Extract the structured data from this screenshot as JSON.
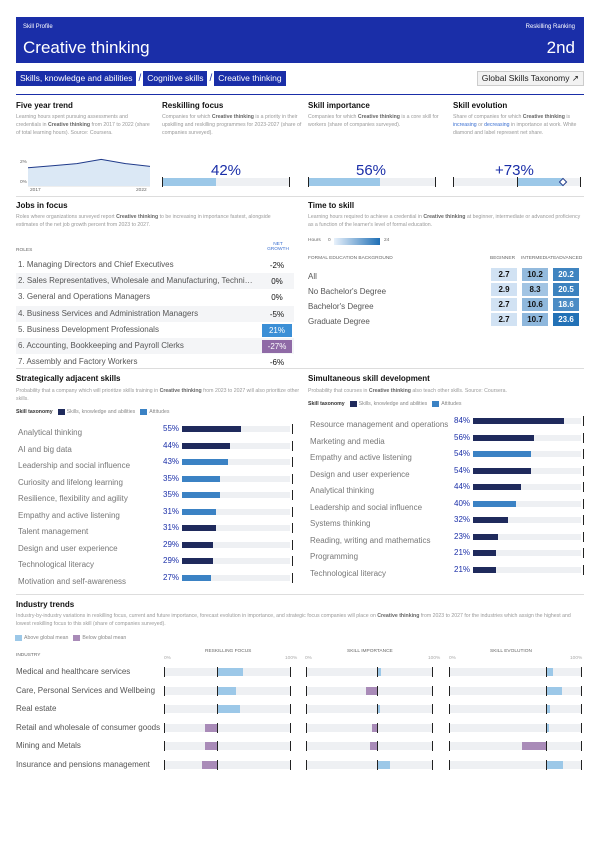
{
  "header": {
    "skill_profile": "Skill Profile",
    "reskilling_ranking": "Reskilling Ranking",
    "title": "Creative thinking",
    "rank": "2nd"
  },
  "breadcrumb": [
    "Skills, knowledge and abilities",
    "Cognitive skills",
    "Creative thinking"
  ],
  "breadcrumb_sep": "/",
  "taxonomy_link": "Global Skills Taxonomy ↗",
  "five_year": {
    "title": "Five year trend",
    "desc_pre": "Learning hours spent pursuing assessments and credentials in ",
    "desc_bold": "Creative thinking",
    "desc_post": " from 2017 to 2022 (share of total learning hours). Source: Coursera.",
    "y_top": "2%",
    "y_bottom": "0%",
    "x_start": "2017",
    "x_end": "2022",
    "chart_data": {
      "type": "area",
      "x": [
        2017,
        2018,
        2019,
        2020,
        2021,
        2022
      ],
      "values": [
        1.3,
        1.45,
        1.6,
        1.9,
        1.6,
        1.4
      ],
      "ylim": [
        0,
        2
      ],
      "color": "#8fbde6"
    }
  },
  "reskilling_focus": {
    "title": "Reskilling focus",
    "desc_pre": "Companies for which ",
    "desc_bold": "Creative thinking",
    "desc_post": " is a priority in their upskilling and reskilling programmes for 2023-2027 (share of companies surveyed).",
    "value": "42%",
    "fill": 0.42
  },
  "skill_importance": {
    "title": "Skill importance",
    "desc_pre": "Companies for which ",
    "desc_bold": "Creative thinking",
    "desc_post": " is a core skill for workers (share of companies surveyed).",
    "value": "56%",
    "fill": 0.56
  },
  "skill_evolution": {
    "title": "Skill evolution",
    "desc_pre": "Share of companies for which ",
    "desc_bold": "Creative thinking",
    "desc_mid": " is ",
    "desc_blue1": "increasing",
    "desc_or": " or ",
    "desc_blue2": "decreasing",
    "desc_post": " in importance at work. White diamond and label represent net share.",
    "value": "+73%",
    "net": 0.73
  },
  "jobs_in_focus": {
    "title": "Jobs in focus",
    "desc_pre": "Roles where organizations surveyed report ",
    "desc_bold": "Creative thinking",
    "desc_post": " to be increasing in importance fastest, alongside estimates of the net job growth percent from 2023 to 2027.",
    "col_roles": "ROLES",
    "col_net": "NET GROWTH",
    "rows": [
      {
        "name": "1.  Managing Directors and Chief Executives",
        "value": "-2%"
      },
      {
        "name": "2.  Sales Representatives, Wholesale and Manufacturing, Technical…",
        "value": "0%"
      },
      {
        "name": "3.  General and Operations Managers",
        "value": "0%"
      },
      {
        "name": "4.  Business Services and Administration Managers",
        "value": "-5%"
      },
      {
        "name": "5.  Business Development Professionals",
        "value": "21%"
      },
      {
        "name": "6.  Accounting, Bookkeeping and Payroll Clerks",
        "value": "-27%"
      },
      {
        "name": "7.  Assembly and Factory Workers",
        "value": "-6%"
      }
    ]
  },
  "time_to_skill": {
    "title": "Time to skill",
    "desc_pre": "Learning hours required to achieve a credential in ",
    "desc_bold": "Creative thinking",
    "desc_post": " at beginner, intermediate or advanced proficiency as a function of the learner's level of formal education.",
    "hours_label": "Hours",
    "scale_min": "0",
    "scale_max": "24",
    "col_bg": "FORMAL EDUCATION BACKGROUND",
    "col_beg": "BEGINNER",
    "col_int": "INTERMEDIATE",
    "col_adv": "ADVANCED",
    "rows": [
      {
        "name": "All",
        "beg": "2.7",
        "int": "10.2",
        "adv": "20.2"
      },
      {
        "name": "No Bachelor's Degree",
        "beg": "2.9",
        "int": "8.3",
        "adv": "20.5"
      },
      {
        "name": "Bachelor's Degree",
        "beg": "2.7",
        "int": "10.6",
        "adv": "18.6"
      },
      {
        "name": "Graduate Degree",
        "beg": "2.7",
        "int": "10.7",
        "adv": "23.6"
      }
    ]
  },
  "adjacent": {
    "title": "Strategically adjacent skills",
    "desc_pre": "Probability that a company which will prioritize skills training in ",
    "desc_bold": "Creative thinking",
    "desc_post": " from 2023 to 2027 will also prioritize other skills.",
    "legend_title": "Skill taxonomy",
    "legend_a": "Skills, knowledge and abilities",
    "legend_b": "Attitudes",
    "color_a": "#1f2a5c",
    "color_b": "#3b82c4",
    "chart_data": {
      "type": "bar",
      "categories": [
        "Analytical thinking",
        "AI and big data",
        "Leadership and social influence",
        "Curiosity and lifelong learning",
        "Resilience, flexibility and agility",
        "Empathy and active listening",
        "Talent management",
        "Design and user experience",
        "Technological literacy",
        "Motivation and self-awareness"
      ],
      "values": [
        55,
        44,
        43,
        35,
        35,
        31,
        31,
        29,
        29,
        27
      ],
      "labels": [
        "55%",
        "44%",
        "43%",
        "35%",
        "35%",
        "31%",
        "31%",
        "29%",
        "29%",
        "27%"
      ],
      "taxonomy": [
        "a",
        "a",
        "b",
        "b",
        "b",
        "b",
        "a",
        "a",
        "a",
        "b"
      ],
      "ylim": [
        0,
        100
      ]
    }
  },
  "simultaneous": {
    "title": "Simultaneous skill development",
    "desc_pre": "Probability that courses in ",
    "desc_bold": "Creative thinking",
    "desc_post": " also teach other skills. Source: Coursera.",
    "legend_title": "Skill taxonomy",
    "legend_a": "Skills, knowledge and abilities",
    "legend_b": "Attitudes",
    "chart_data": {
      "type": "bar",
      "categories": [
        "Resource management and operations",
        "Marketing and media",
        "Empathy and active listening",
        "Design and user experience",
        "Analytical thinking",
        "Leadership and social influence",
        "Systems thinking",
        "Reading, writing and mathematics",
        "Programming",
        "Technological literacy"
      ],
      "values": [
        84,
        56,
        54,
        54,
        44,
        40,
        32,
        23,
        21,
        21
      ],
      "labels": [
        "84%",
        "56%",
        "54%",
        "54%",
        "44%",
        "40%",
        "32%",
        "23%",
        "21%",
        "21%"
      ],
      "taxonomy": [
        "a",
        "a",
        "b",
        "a",
        "a",
        "b",
        "a",
        "a",
        "a",
        "a"
      ],
      "ylim": [
        0,
        100
      ]
    }
  },
  "industry": {
    "title": "Industry trends",
    "desc_pre": "Industry-by-industry variations in reskilling focus, current and future importance, forecast evolution in importance, and strategic focus companies will place on ",
    "desc_bold": "Creative thinking",
    "desc_post": " from 2023 to 2027 for the industries which assign the highest and lowest reskilling focus to this skill (share of companies surveyed).",
    "legend_above": "Above global mean",
    "legend_below": "Below global mean",
    "color_above": "#9cc8e8",
    "color_below": "#a98bb8",
    "col_industry": "INDUSTRY",
    "col_focus": "RESKILLING FOCUS",
    "col_importance": "SKILL IMPORTANCE",
    "col_evolution": "SKILL EVOLUTION",
    "axis_min": "0%",
    "axis_max": "100%",
    "rows": [
      {
        "name": "Medical and healthcare services",
        "focus": [
          0.42,
          0.62,
          "above"
        ],
        "importance": [
          0.56,
          0.59,
          "above"
        ],
        "evolution": [
          0.73,
          0.78,
          "above"
        ]
      },
      {
        "name": "Care, Personal Services and Wellbeing",
        "focus": [
          0.42,
          0.57,
          "above"
        ],
        "importance": [
          0.47,
          0.56,
          "below"
        ],
        "evolution": [
          0.73,
          0.85,
          "above"
        ]
      },
      {
        "name": "Real estate",
        "focus": [
          0.42,
          0.6,
          "above"
        ],
        "importance": [
          0.56,
          0.58,
          "above"
        ],
        "evolution": [
          0.73,
          0.76,
          "above"
        ]
      },
      {
        "name": "Retail and wholesale of consumer goods",
        "focus": [
          0.32,
          0.42,
          "below"
        ],
        "importance": [
          0.52,
          0.56,
          "below"
        ],
        "evolution": [
          0.73,
          0.75,
          "above"
        ]
      },
      {
        "name": "Mining and Metals",
        "focus": [
          0.32,
          0.42,
          "below"
        ],
        "importance": [
          0.5,
          0.56,
          "below"
        ],
        "evolution": [
          0.55,
          0.73,
          "below"
        ]
      },
      {
        "name": "Insurance and pensions management",
        "focus": [
          0.3,
          0.42,
          "below"
        ],
        "importance": [
          0.56,
          0.66,
          "above"
        ],
        "evolution": [
          0.73,
          0.86,
          "above"
        ]
      }
    ]
  }
}
